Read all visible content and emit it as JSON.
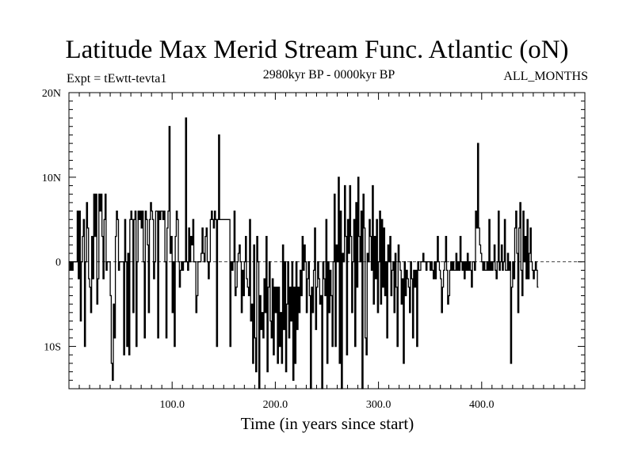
{
  "chart_data": {
    "type": "line",
    "title": "Latitude Max Merid Stream Func. Atlantic (oN)",
    "subtitle_left": "Expt = tEwtt-tevta1",
    "subtitle_center": "2980kyr BP - 0000kyr BP",
    "subtitle_right": "ALL_MONTHS",
    "xlabel": "Time (in years since start)",
    "ylabel": "",
    "xlim": [
      0,
      500
    ],
    "ylim": [
      -15,
      20
    ],
    "x_ticks": [
      {
        "value": 100,
        "label": "100.0"
      },
      {
        "value": 200,
        "label": "200.0"
      },
      {
        "value": 300,
        "label": "300.0"
      },
      {
        "value": 400,
        "label": "400.0"
      }
    ],
    "y_ticks": [
      {
        "value": 20,
        "label": "20N"
      },
      {
        "value": 10,
        "label": "10N"
      },
      {
        "value": 0,
        "label": "0"
      },
      {
        "value": -10,
        "label": "10S"
      }
    ],
    "zero_line": true,
    "series": [
      {
        "name": "Latitude of max meridional stream function",
        "color": "#000000",
        "x_start": 1,
        "x_step": 1,
        "values": [
          0,
          -1,
          0,
          -1,
          0,
          0,
          0,
          0,
          6,
          -2,
          6,
          -7,
          0,
          3,
          5,
          -10,
          0,
          7,
          4,
          -2,
          -3,
          -6,
          3,
          -2,
          8,
          3,
          8,
          -5,
          -2,
          8,
          6,
          8,
          3,
          -2,
          5,
          8,
          -1,
          0,
          0,
          0,
          -4,
          -12,
          -14,
          -5,
          -9,
          3,
          6,
          5,
          -1,
          0,
          0,
          0,
          0,
          -11,
          5,
          0,
          -10,
          1,
          -11,
          5,
          6,
          5,
          -6,
          5,
          6,
          -10,
          0,
          6,
          5,
          6,
          4,
          6,
          0,
          -9,
          6,
          5,
          2,
          -6,
          5,
          7,
          6,
          5,
          -2,
          0,
          6,
          6,
          -9,
          6,
          5,
          6,
          6,
          5,
          6,
          0,
          -9,
          4,
          6,
          16,
          1,
          3,
          -6,
          0,
          -10,
          3,
          6,
          5,
          0,
          -3,
          -1,
          0,
          -1,
          0,
          0,
          17,
          0,
          -1,
          4,
          0,
          3,
          2,
          5,
          0,
          0,
          -6,
          -4,
          0,
          0,
          0,
          1,
          4,
          1,
          0,
          3,
          4,
          0,
          -2,
          0,
          5,
          6,
          5,
          4,
          6,
          5,
          -10,
          5,
          15,
          5,
          5,
          5,
          5,
          5,
          5,
          5,
          5,
          5,
          5,
          -10,
          0,
          -1,
          0,
          6,
          -4,
          -3,
          0,
          1,
          2,
          0,
          -6,
          -1,
          -4,
          0,
          3,
          -2,
          -3,
          -4,
          5,
          -7,
          -5,
          -12,
          2,
          -9,
          -13,
          3,
          0,
          -15,
          -4,
          -8,
          -6,
          -9,
          -2,
          -6,
          3,
          -13,
          -3,
          0,
          -7,
          -9,
          -2,
          -11,
          -3,
          -6,
          -3,
          -12,
          -3,
          -10,
          -6,
          -12,
          2,
          -8,
          0,
          -13,
          -5,
          0,
          -9,
          -3,
          -7,
          0,
          -14,
          -3,
          -12,
          0,
          -8,
          -3,
          -6,
          -1,
          -4,
          3,
          -1,
          2,
          0,
          -6,
          -2,
          0,
          -4,
          -16,
          -3,
          -6,
          -1,
          4,
          -8,
          -3,
          0,
          -2,
          -5,
          -4,
          -15,
          0,
          -2,
          -4,
          5,
          -12,
          0,
          -6,
          -1,
          -4,
          -10,
          0,
          8,
          -10,
          2,
          0,
          10,
          -12,
          6,
          -16,
          1,
          0,
          9,
          3,
          -11,
          5,
          1,
          9,
          3,
          -6,
          0,
          5,
          -10,
          7,
          -3,
          10,
          3,
          0,
          6,
          -15,
          8,
          4,
          -9,
          -11,
          1,
          0,
          5,
          3,
          -1,
          9,
          -5,
          3,
          -2,
          5,
          -6,
          0,
          6,
          -5,
          5,
          -3,
          4,
          -4,
          0,
          -9,
          2,
          0,
          3,
          -4,
          -1,
          0,
          -6,
          1,
          -3,
          -10,
          2,
          0,
          -1,
          -5,
          -2,
          -12,
          0,
          -4,
          -1,
          -2,
          -3,
          -6,
          0,
          -2,
          -9,
          -1,
          -3,
          -1,
          -10,
          0,
          -1,
          -1,
          0,
          0,
          1,
          0,
          0,
          -1,
          0,
          0,
          0,
          -1,
          0,
          -1,
          -2,
          0,
          -2,
          0,
          3,
          0,
          -1,
          -2,
          -6,
          -3,
          -1,
          0,
          3,
          -1,
          -5,
          -4,
          -1,
          0,
          -1,
          0,
          -1,
          -1,
          1,
          -1,
          0,
          -1,
          3,
          0,
          -1,
          0,
          -2,
          0,
          -1,
          1,
          -1,
          0,
          -1,
          -3,
          0,
          0,
          -1,
          6,
          4,
          14,
          4,
          2,
          1,
          0,
          -1,
          0,
          -1,
          -1,
          0,
          -1,
          5,
          -1,
          0,
          -1,
          0,
          2,
          -1,
          -2,
          0,
          6,
          -1,
          0,
          2,
          -1,
          0,
          5,
          -1,
          -1,
          1,
          -1,
          0,
          -12,
          -3,
          0,
          -2,
          4,
          6,
          1,
          -6,
          4,
          7,
          -1,
          -4,
          6,
          0,
          3,
          -2,
          5,
          -2,
          1,
          4,
          0,
          -1,
          -2,
          -1,
          0,
          -1,
          -3
        ]
      }
    ]
  }
}
